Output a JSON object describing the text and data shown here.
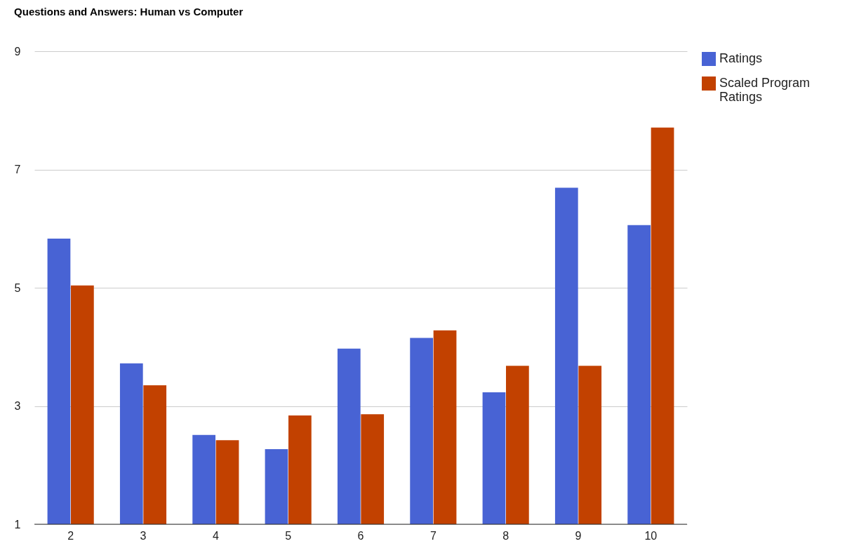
{
  "chart_data": {
    "type": "bar",
    "title": "Questions and Answers: Human vs Computer",
    "categories": [
      "2",
      "3",
      "4",
      "5",
      "6",
      "7",
      "8",
      "9",
      "10"
    ],
    "series": [
      {
        "name": "Ratings",
        "color": "#4863d4",
        "values": [
          5.83,
          3.72,
          2.51,
          2.27,
          3.97,
          4.15,
          3.23,
          6.69,
          6.06
        ]
      },
      {
        "name": "Scaled Program Ratings",
        "color": "#c24100",
        "values": [
          5.04,
          3.35,
          2.42,
          2.84,
          2.86,
          4.28,
          3.68,
          3.68,
          7.71
        ]
      }
    ],
    "ylim": [
      1,
      9
    ],
    "yticks": [
      1,
      3,
      5,
      7,
      9
    ],
    "grid": "y",
    "legend": "right"
  }
}
